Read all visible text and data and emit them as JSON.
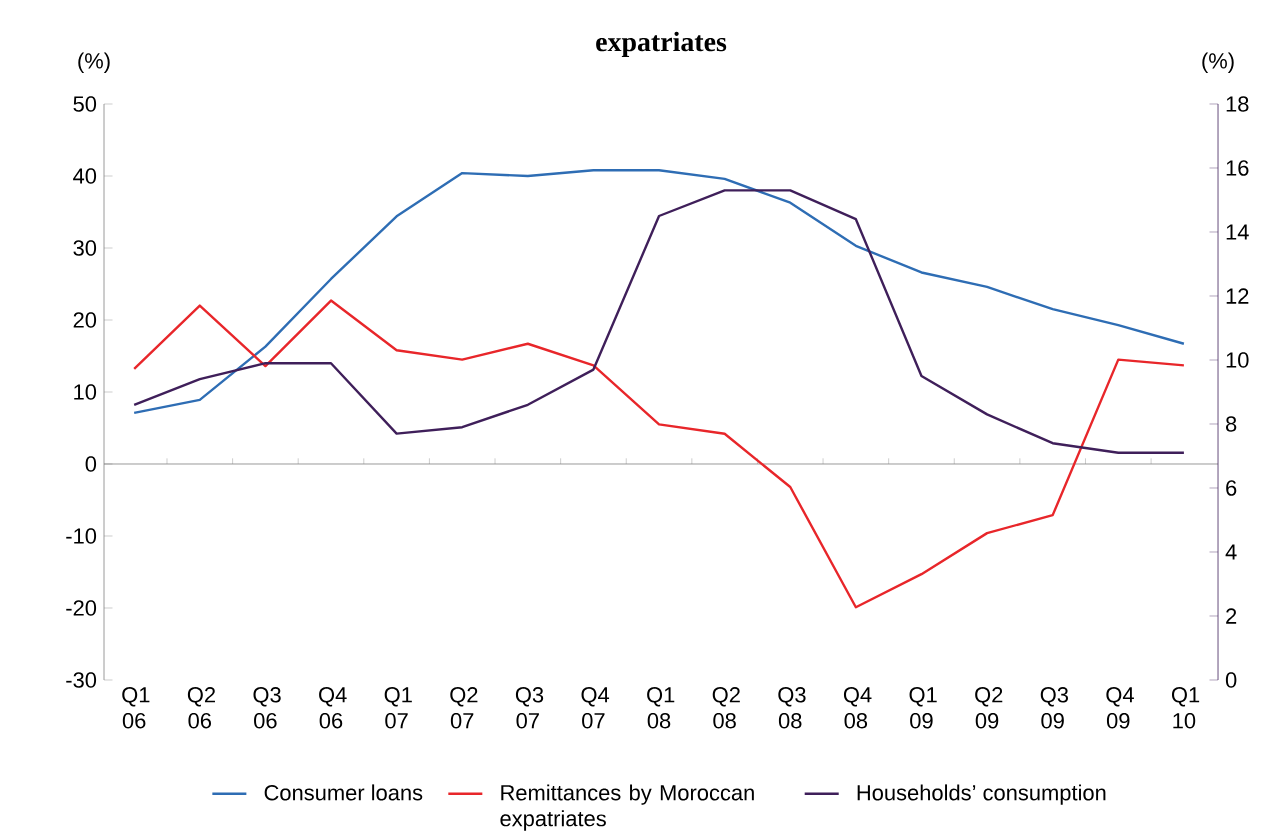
{
  "chart_data": {
    "type": "line",
    "title": "expatriates",
    "ylabel": "(%)",
    "y2label": "(%)",
    "categories": [
      "Q1 06",
      "Q2 06",
      "Q3 06",
      "Q4 06",
      "Q1 07",
      "Q2 07",
      "Q3 07",
      "Q4 07",
      "Q1 08",
      "Q2 08",
      "Q3 08",
      "Q4 08",
      "Q1 09",
      "Q2 09",
      "Q3 09",
      "Q4 09",
      "Q1 10"
    ],
    "series": [
      {
        "name": "Consumer loans",
        "color": "#2e6db4",
        "values": [
          7.1,
          8.9,
          16.3,
          25.7,
          34.4,
          40.4,
          40.0,
          40.8,
          40.8,
          39.6,
          36.3,
          30.3,
          26.6,
          24.6,
          21.5,
          19.3,
          16.7
        ]
      },
      {
        "name": "Remittances by Moroccan expatriates",
        "color": "#e8262a",
        "values": [
          13.2,
          22.0,
          13.6,
          22.7,
          15.8,
          14.5,
          16.7,
          13.7,
          5.5,
          4.2,
          -3.2,
          -19.9,
          -15.3,
          -9.6,
          -7.1,
          14.5,
          13.7
        ]
      },
      {
        "name": "Households’ consumption",
        "color": "#3f1f5a",
        "axis": "y2",
        "values": [
          8.6,
          9.4,
          9.9,
          9.9,
          7.7,
          7.9,
          8.6,
          9.7,
          14.5,
          15.3,
          15.3,
          14.4,
          9.5,
          8.3,
          7.4,
          7.1,
          7.1
        ]
      }
    ],
    "ylim": [
      -30,
      50
    ],
    "yticks": [
      -30,
      -20,
      -10,
      0,
      10,
      20,
      30,
      40,
      50
    ],
    "y2lim": [
      0,
      18
    ],
    "y2ticks": [
      0,
      2,
      4,
      6,
      8,
      10,
      12,
      14,
      16,
      18
    ],
    "legend": "bottom",
    "marker": "none",
    "line_style": "solid"
  }
}
